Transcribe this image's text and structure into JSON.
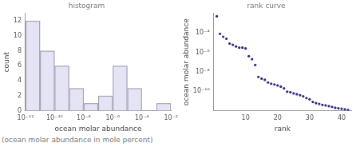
{
  "chart_data": [
    {
      "type": "histogram",
      "title": "histogram",
      "x_label": "ocean molar abundance",
      "y_label": "count",
      "bins": [
        1e-12,
        1e-11,
        1e-10,
        1e-09,
        1e-08,
        1e-07,
        1e-06,
        1e-05,
        0.0001,
        0.001,
        0.01
      ],
      "values": [
        12,
        8,
        6,
        3,
        1,
        2,
        6,
        3,
        0,
        1
      ],
      "color": "#e4e4f4",
      "log": "x",
      "grid": false,
      "xlim": [
        1e-12,
        0.01
      ],
      "xticks": [
        {
          "value": 1e-12,
          "label": "10⁻¹²"
        },
        {
          "value": 1e-10,
          "label": "10⁻¹⁰"
        },
        {
          "value": 1e-08,
          "label": "10⁻⁸"
        },
        {
          "value": 1e-06,
          "label": "10⁻⁶"
        },
        {
          "value": 0.0001,
          "label": "10⁻⁴"
        },
        {
          "value": 0.01,
          "label": "10⁻²"
        }
      ],
      "ylim": [
        0,
        13
      ],
      "yticks": [
        0,
        2,
        4,
        6,
        8,
        10,
        12
      ]
    },
    {
      "type": "scatter",
      "title": "rank curve",
      "x_label": "rank",
      "y_label": "ocean molar abundance",
      "x": [
        1,
        2,
        3,
        4,
        5,
        6,
        7,
        8,
        9,
        10,
        11,
        12,
        13,
        14,
        15,
        16,
        17,
        18,
        19,
        20,
        21,
        22,
        23,
        24,
        25,
        26,
        27,
        28,
        29,
        30,
        31,
        32,
        33,
        34,
        35,
        36,
        37,
        38,
        39,
        40,
        41,
        42
      ],
      "values": [
        0.005,
        8e-05,
        4e-05,
        2.5e-05,
        8e-06,
        6e-06,
        4e-06,
        3e-06,
        3e-06,
        2.5e-06,
        4e-07,
        2e-07,
        5e-08,
        3e-09,
        2e-09,
        1.5e-09,
        8e-10,
        6e-10,
        5e-10,
        4e-10,
        3e-10,
        2e-10,
        9e-11,
        8e-11,
        6e-11,
        5e-11,
        4e-11,
        3e-11,
        2e-11,
        1.5e-11,
        8e-12,
        6e-12,
        5e-12,
        4e-12,
        3.5e-12,
        3e-12,
        2.5e-12,
        2e-12,
        1.8e-12,
        1.6e-12,
        1.4e-12,
        1.2e-12
      ],
      "color": "#2a2a80",
      "marker": "circle",
      "log": "y",
      "grid": false,
      "xlim": [
        0,
        43
      ],
      "xticks": [
        10,
        20,
        30,
        40
      ],
      "ylim": [
        1e-12,
        0.01
      ],
      "yticks": [
        {
          "value": 1e-10,
          "label": "10⁻¹⁰"
        },
        {
          "value": 1e-08,
          "label": "10⁻⁸"
        },
        {
          "value": 1e-06,
          "label": "10⁻⁶"
        },
        {
          "value": 0.0001,
          "label": "10⁻⁴"
        }
      ]
    }
  ],
  "caption": "(ocean molar abundance in mole percent)"
}
